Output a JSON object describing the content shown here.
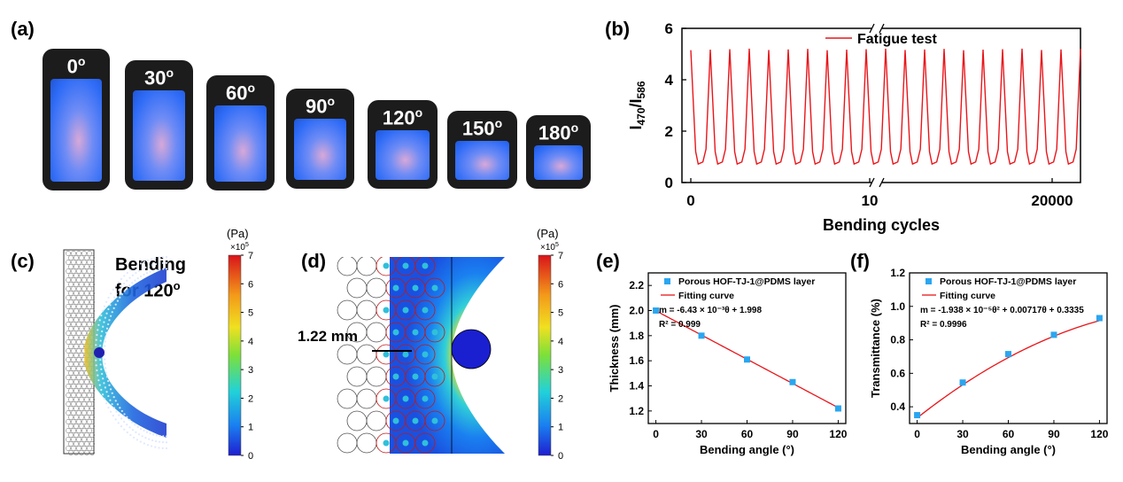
{
  "panels": {
    "a": {
      "label": "(a)",
      "angles": [
        "0",
        "30",
        "60",
        "90",
        "120",
        "150",
        "180"
      ],
      "degree_symbol": "o"
    },
    "b": {
      "label": "(b)",
      "ylabel_main": "I",
      "ylabel_sub1": "470",
      "ylabel_slash": "/I",
      "ylabel_sub2": "586",
      "xlabel": "Bending cycles",
      "legend": "Fatigue test",
      "yticks": [
        "0",
        "2",
        "4",
        "6"
      ],
      "xticks": [
        "0",
        "10",
        "20000"
      ]
    },
    "c": {
      "label": "(c)",
      "title_line1": "Bending",
      "title_line2": "for 120",
      "title_deg": "o",
      "colorbar_unit": "(Pa)",
      "colorbar_scale": "×10",
      "colorbar_exp": "5",
      "colorbar_ticks": [
        "7",
        "6",
        "5",
        "4",
        "3",
        "2",
        "1",
        "0"
      ]
    },
    "d": {
      "label": "(d)",
      "measure": "1.22 mm",
      "colorbar_unit": "(Pa)",
      "colorbar_scale": "×10",
      "colorbar_exp": "5",
      "colorbar_ticks": [
        "7",
        "6",
        "5",
        "4",
        "3",
        "2",
        "1",
        "0"
      ]
    },
    "e": {
      "label": "(e)",
      "legend_points": "Porous HOF-TJ-1@PDMS layer",
      "legend_fit": "Fitting curve",
      "eq": "m = -6.43 × 10⁻³θ + 1.998",
      "r2": "R² = 0.999",
      "ylabel": "Thickness (mm)",
      "xlabel": "Bending angle (°)",
      "yticks": [
        "1.2",
        "1.4",
        "1.6",
        "1.8",
        "2.0",
        "2.2"
      ],
      "xticks": [
        "0",
        "30",
        "60",
        "90",
        "120"
      ]
    },
    "f": {
      "label": "(f)",
      "legend_points": "Porous HOF-TJ-1@PDMS layer",
      "legend_fit": "Fitting curve",
      "eq": "m = -1.938 × 10⁻⁵θ² + 0.00717θ + 0.3335",
      "r2": "R² = 0.9996",
      "ylabel": "Transmittance (%)",
      "xlabel": "Bending angle (°)",
      "yticks": [
        "0.4",
        "0.6",
        "0.8",
        "1.0",
        "1.2"
      ],
      "xticks": [
        "0",
        "30",
        "60",
        "90",
        "120"
      ]
    }
  },
  "colors": {
    "line": "#e8161b",
    "marker": "#2aa6f0",
    "sample": "#2f6cf7"
  },
  "chart_data": [
    {
      "type": "line",
      "panel": "b",
      "series": [
        {
          "name": "Fatigue test",
          "pattern": "peaks ~5.1 to 5.2, valleys ~0.7 to 0.8",
          "peaks": 20
        }
      ],
      "ylim": [
        0,
        6
      ],
      "xlabel": "Bending cycles"
    },
    {
      "type": "scatter",
      "panel": "e",
      "x": [
        0,
        30,
        60,
        90,
        120
      ],
      "series": [
        {
          "name": "Porous HOF-TJ-1@PDMS layer",
          "values": [
            2.0,
            1.8,
            1.61,
            1.43,
            1.22
          ]
        }
      ],
      "fit": {
        "name": "Fitting curve",
        "slope": -0.00643,
        "intercept": 1.998
      },
      "xlim": [
        -5,
        125
      ],
      "ylim": [
        1.1,
        2.3
      ],
      "xlabel": "Bending angle (°)",
      "ylabel": "Thickness (mm)"
    },
    {
      "type": "scatter",
      "panel": "f",
      "x": [
        0,
        30,
        60,
        90,
        120
      ],
      "series": [
        {
          "name": "Porous HOF-TJ-1@PDMS layer",
          "values": [
            0.35,
            0.545,
            0.715,
            0.83,
            0.93
          ]
        }
      ],
      "fit": {
        "name": "Fitting curve",
        "a": -1.938e-05,
        "b": 0.00717,
        "c": 0.3335
      },
      "xlim": [
        -5,
        125
      ],
      "ylim": [
        0.3,
        1.2
      ],
      "xlabel": "Bending angle (°)",
      "ylabel": "Transmittance (%)"
    }
  ]
}
